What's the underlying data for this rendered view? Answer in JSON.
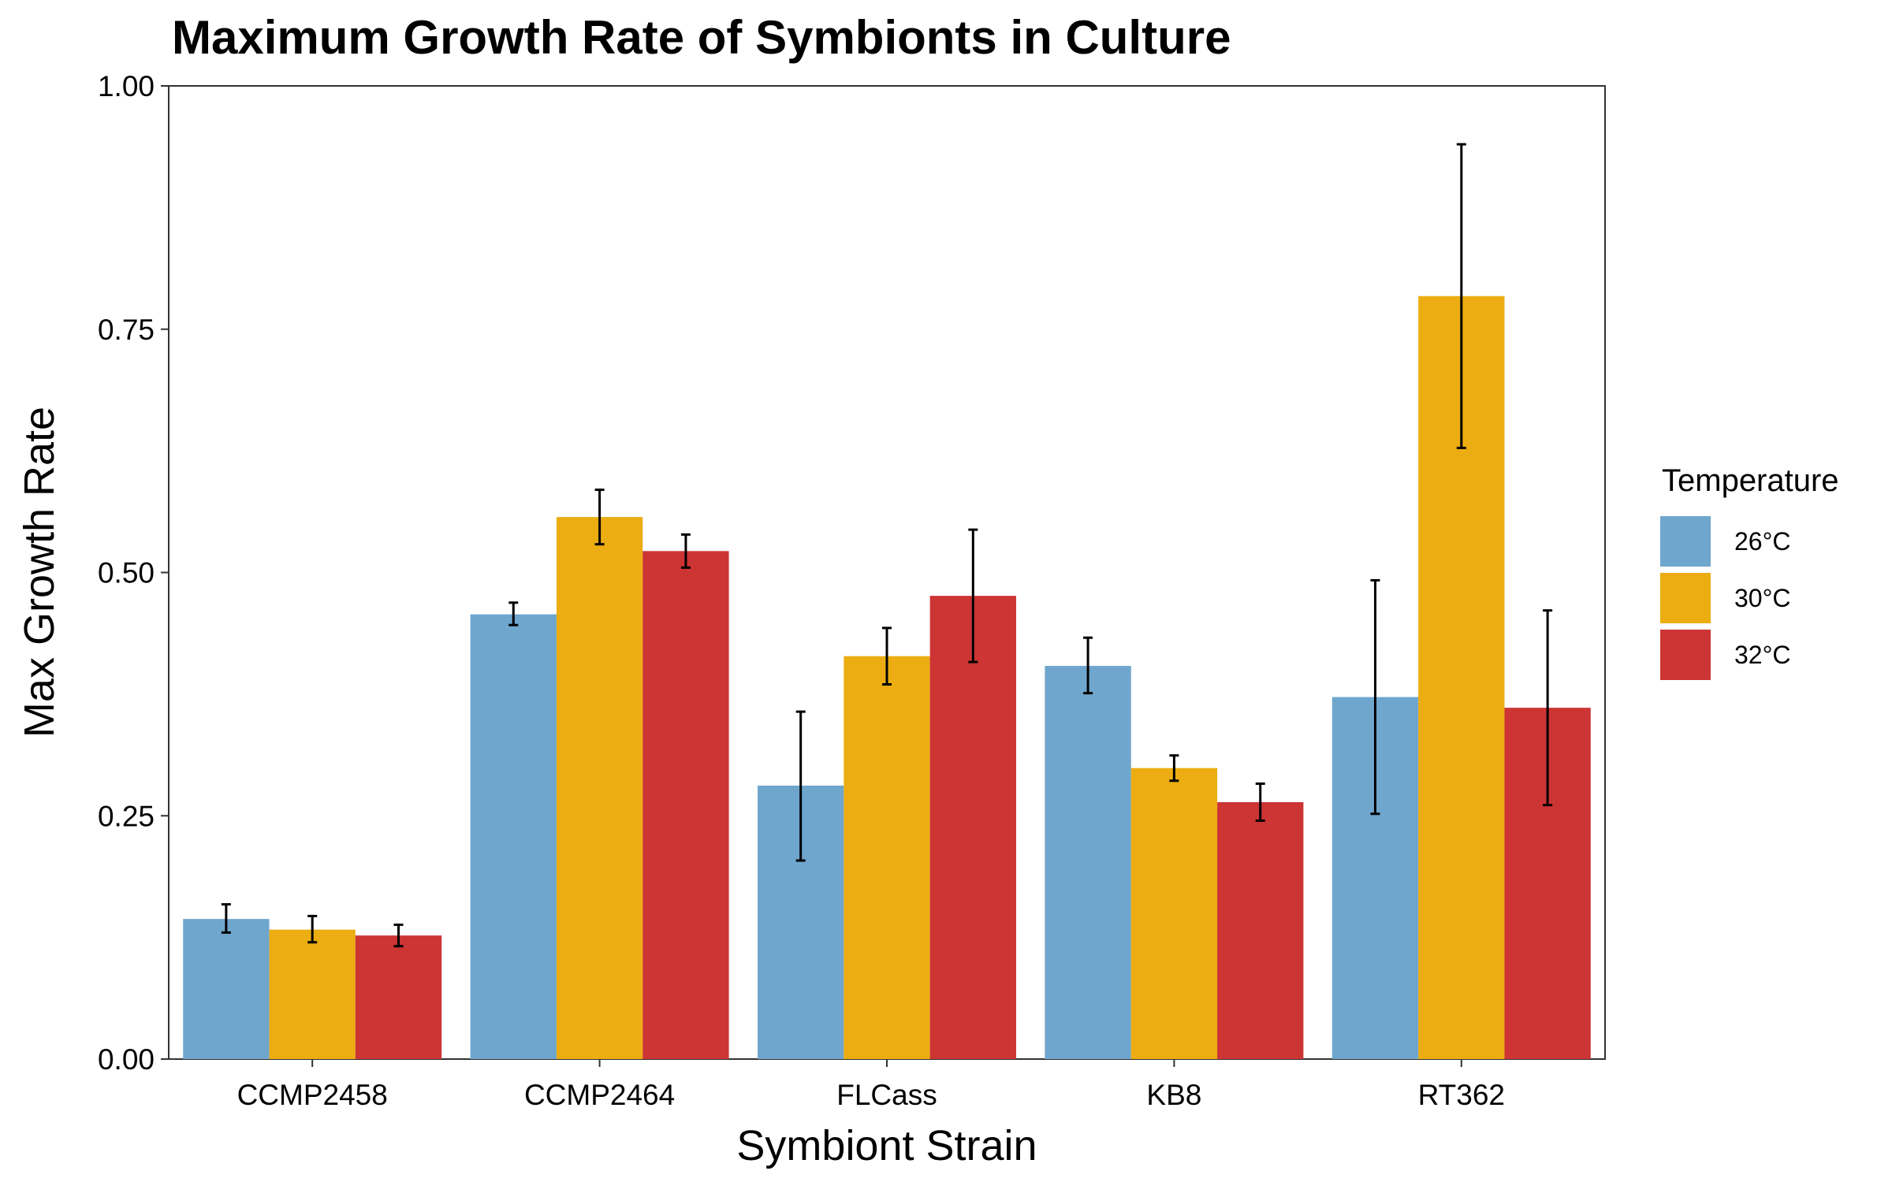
{
  "chart_data": {
    "type": "bar",
    "title": "Maximum Growth Rate of Symbionts in Culture",
    "xlabel": "Symbiont Strain",
    "ylabel": "Max Growth Rate",
    "ylim": [
      0,
      1
    ],
    "yticks": [
      "0.00",
      "0.25",
      "0.50",
      "0.75",
      "1.00"
    ],
    "ytick_values": [
      0,
      0.25,
      0.5,
      0.75,
      1.0
    ],
    "categories": [
      "CCMP2458",
      "CCMP2464",
      "FLCass",
      "KB8",
      "RT362"
    ],
    "legend_title": "Temperature",
    "legend_position": "right",
    "grid": false,
    "series": [
      {
        "name": "26°C",
        "color": "#6fa6cd",
        "values": [
          0.144,
          0.457,
          0.281,
          0.404,
          0.372
        ],
        "error_low": [
          0.13,
          0.446,
          0.204,
          0.376,
          0.252
        ],
        "error_high": [
          0.159,
          0.469,
          0.357,
          0.433,
          0.492
        ]
      },
      {
        "name": "30°C",
        "color": "#ecad12",
        "values": [
          0.133,
          0.557,
          0.414,
          0.299,
          0.784
        ],
        "error_low": [
          0.12,
          0.529,
          0.385,
          0.286,
          0.628
        ],
        "error_high": [
          0.147,
          0.585,
          0.443,
          0.312,
          0.94
        ]
      },
      {
        "name": "32°C",
        "color": "#cd3434",
        "values": [
          0.127,
          0.522,
          0.476,
          0.264,
          0.361
        ],
        "error_low": [
          0.116,
          0.505,
          0.408,
          0.245,
          0.261
        ],
        "error_high": [
          0.138,
          0.539,
          0.544,
          0.283,
          0.461
        ]
      }
    ]
  }
}
